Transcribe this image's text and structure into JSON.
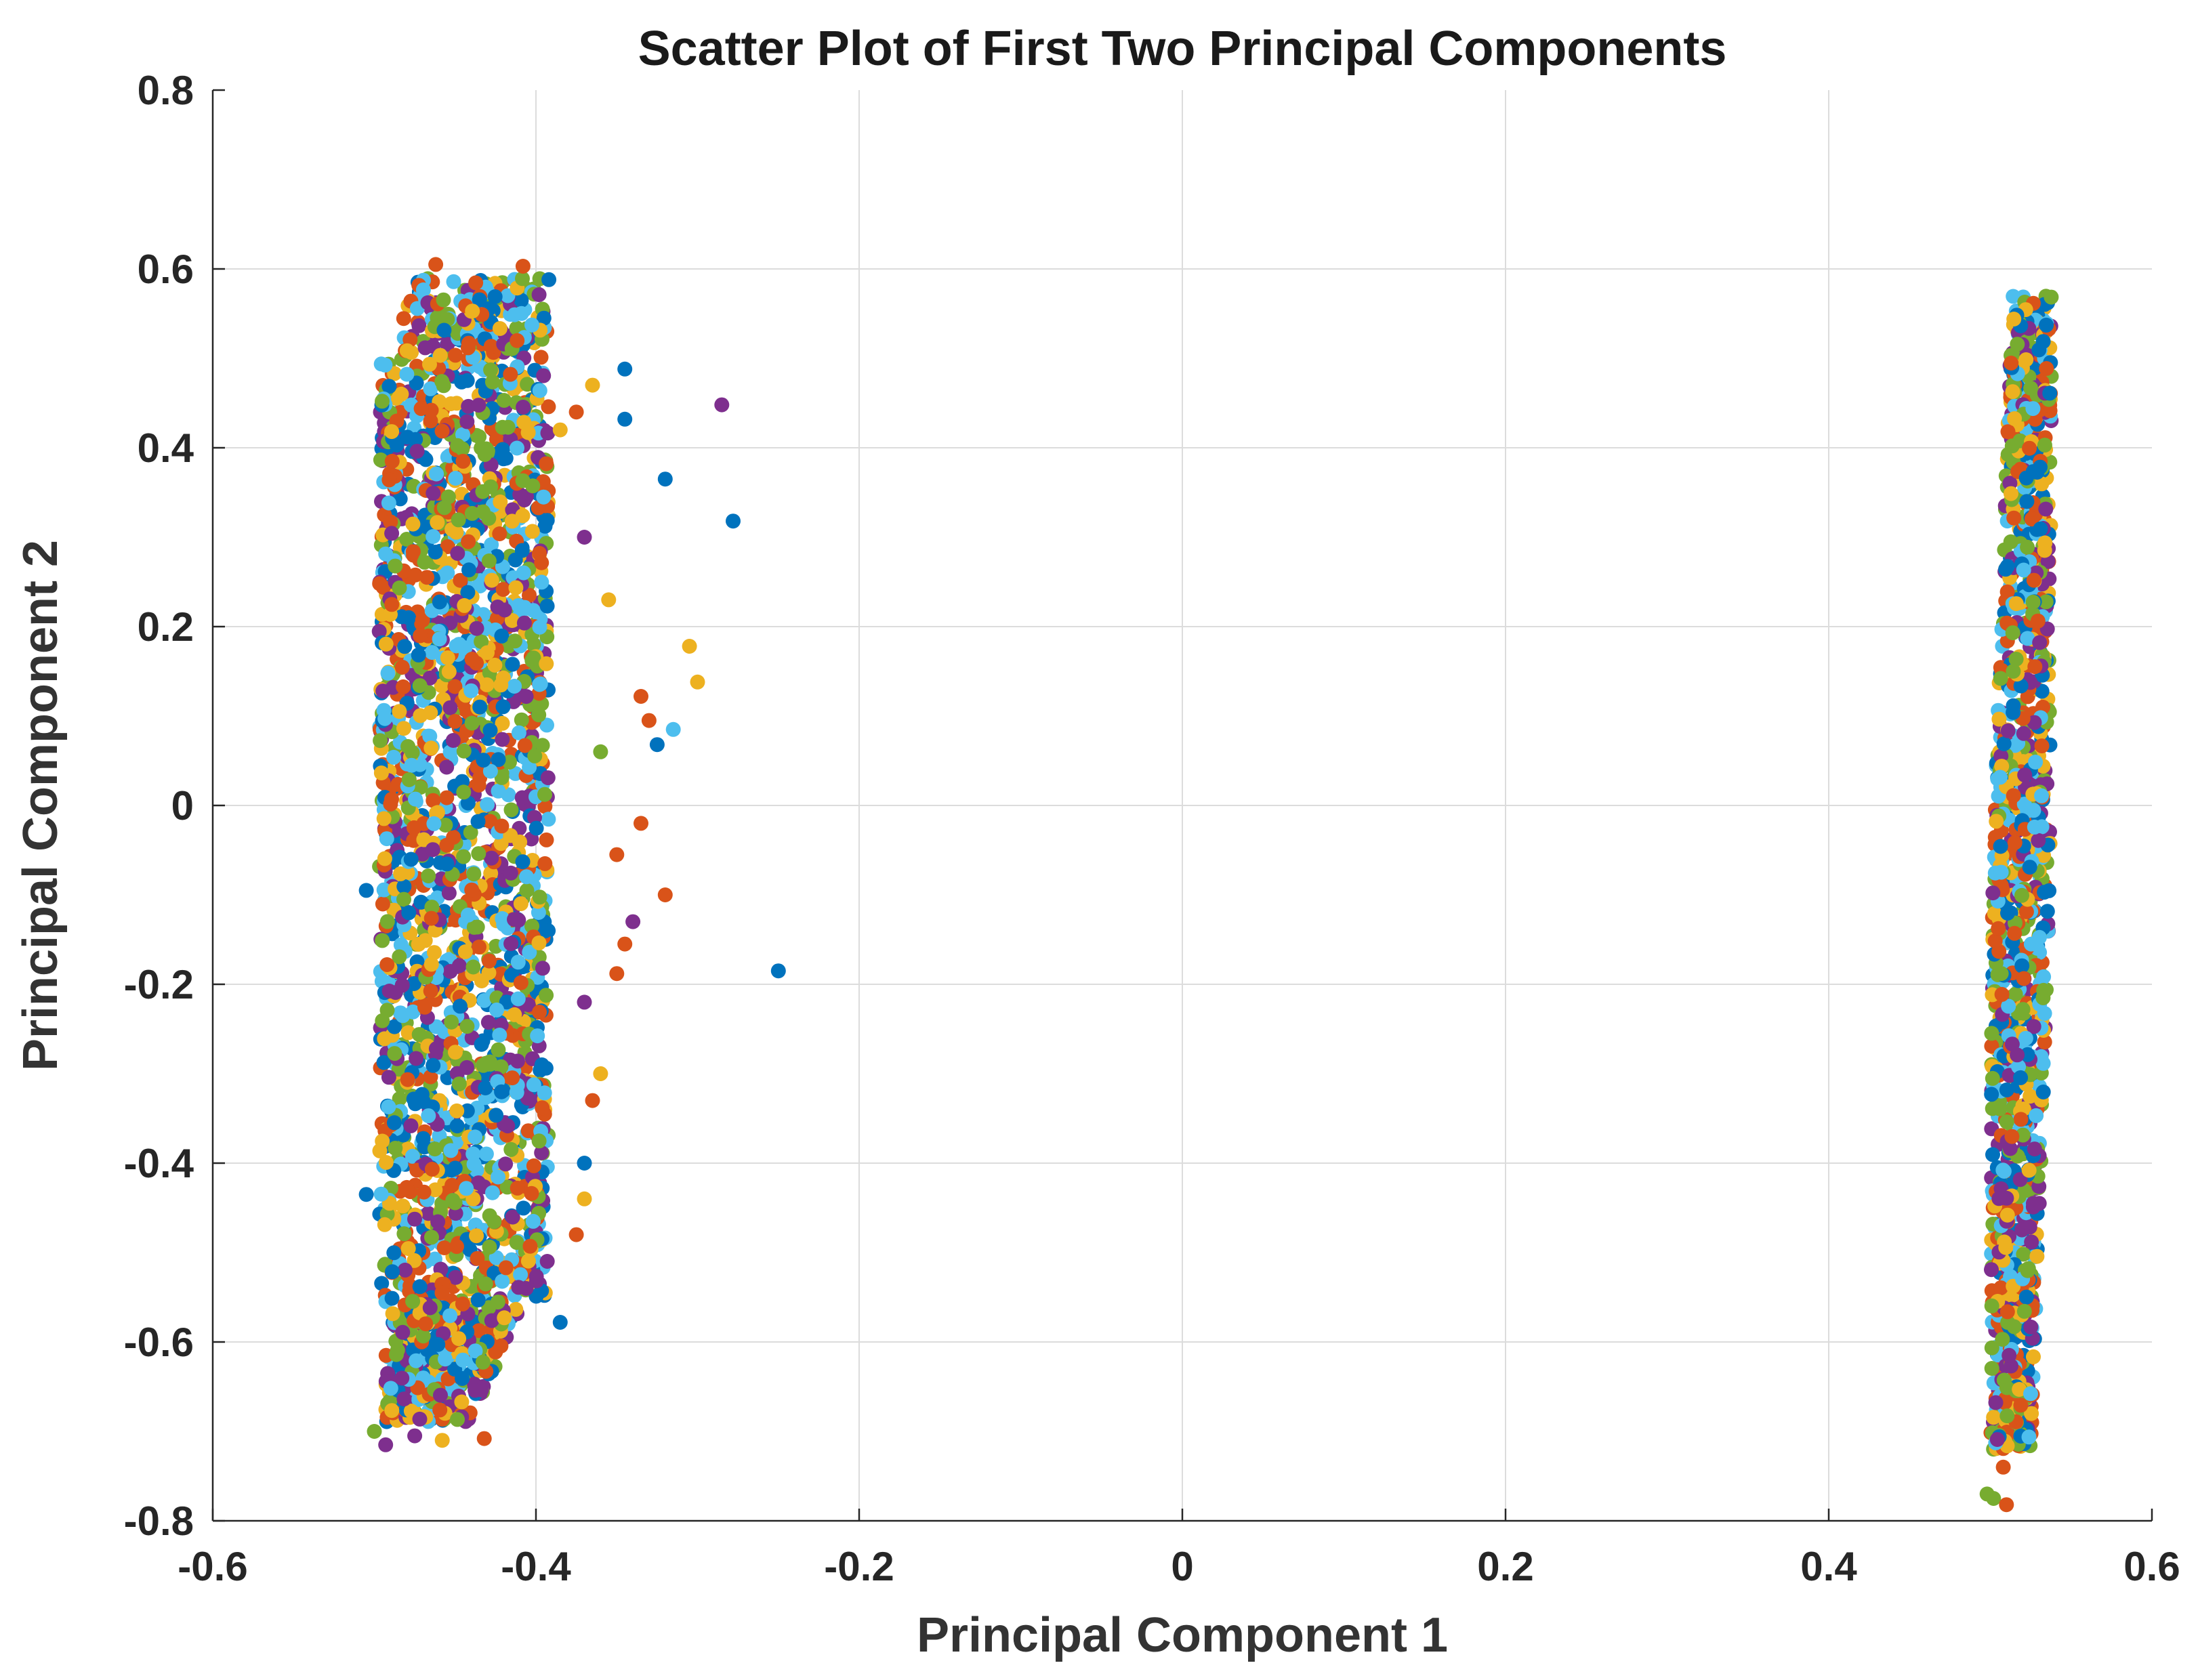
{
  "chart_data": {
    "type": "scatter",
    "title": "Scatter Plot of First Two Principal Components",
    "xlabel": "Principal Component 1",
    "ylabel": "Principal Component 2",
    "xlim": [
      -0.6,
      0.6
    ],
    "ylim": [
      -0.8,
      0.8
    ],
    "xticks": [
      -0.6,
      -0.4,
      -0.2,
      0,
      0.2,
      0.4,
      0.6
    ],
    "xtick_labels": [
      "-0.6",
      "-0.4",
      "-0.2",
      "0",
      "0.2",
      "0.4",
      "0.6"
    ],
    "yticks": [
      -0.8,
      -0.6,
      -0.4,
      -0.2,
      0,
      0.2,
      0.4,
      0.6,
      0.8
    ],
    "ytick_labels": [
      "-0.8",
      "-0.6",
      "-0.4",
      "-0.2",
      "0",
      "0.2",
      "0.4",
      "0.6",
      "0.8"
    ],
    "grid": true,
    "legend": "none",
    "series_colors": [
      "#0072BD",
      "#D95319",
      "#EDB120",
      "#7E2F8E",
      "#77AC30",
      "#4DBEEE"
    ],
    "clusters": [
      {
        "name": "",
        "x_range": [
          -0.5,
          -0.39
        ],
        "y_range": [
          -0.71,
          0.6
        ],
        "center": [
          -0.445,
          -0.05
        ]
      },
      {
        "name": "",
        "x_range": [
          0.495,
          0.535
        ],
        "y_range": [
          -0.78,
          0.58
        ],
        "center": [
          0.518,
          -0.1
        ]
      }
    ],
    "points": [
      {
        "x": -0.462,
        "y": 0.605,
        "c": 1
      },
      {
        "x": -0.408,
        "y": 0.603,
        "c": 1
      },
      {
        "x": -0.392,
        "y": 0.588,
        "c": 0
      },
      {
        "x": -0.345,
        "y": 0.488,
        "c": 0
      },
      {
        "x": -0.365,
        "y": 0.47,
        "c": 2
      },
      {
        "x": -0.285,
        "y": 0.448,
        "c": 3
      },
      {
        "x": -0.375,
        "y": 0.44,
        "c": 1
      },
      {
        "x": -0.345,
        "y": 0.432,
        "c": 0
      },
      {
        "x": -0.385,
        "y": 0.42,
        "c": 2
      },
      {
        "x": -0.32,
        "y": 0.365,
        "c": 0
      },
      {
        "x": -0.278,
        "y": 0.318,
        "c": 0
      },
      {
        "x": -0.37,
        "y": 0.3,
        "c": 3
      },
      {
        "x": -0.355,
        "y": 0.23,
        "c": 2
      },
      {
        "x": -0.305,
        "y": 0.178,
        "c": 2
      },
      {
        "x": -0.3,
        "y": 0.138,
        "c": 2
      },
      {
        "x": -0.335,
        "y": 0.122,
        "c": 1
      },
      {
        "x": -0.33,
        "y": 0.095,
        "c": 1
      },
      {
        "x": -0.315,
        "y": 0.085,
        "c": 5
      },
      {
        "x": -0.325,
        "y": 0.068,
        "c": 0
      },
      {
        "x": -0.36,
        "y": 0.06,
        "c": 4
      },
      {
        "x": -0.335,
        "y": -0.02,
        "c": 1
      },
      {
        "x": -0.35,
        "y": -0.055,
        "c": 1
      },
      {
        "x": -0.32,
        "y": -0.1,
        "c": 1
      },
      {
        "x": -0.34,
        "y": -0.13,
        "c": 3
      },
      {
        "x": -0.345,
        "y": -0.155,
        "c": 1
      },
      {
        "x": -0.25,
        "y": -0.185,
        "c": 0
      },
      {
        "x": -0.35,
        "y": -0.188,
        "c": 1
      },
      {
        "x": -0.37,
        "y": -0.22,
        "c": 3
      },
      {
        "x": -0.36,
        "y": -0.3,
        "c": 2
      },
      {
        "x": -0.365,
        "y": -0.33,
        "c": 1
      },
      {
        "x": -0.37,
        "y": -0.4,
        "c": 0
      },
      {
        "x": -0.37,
        "y": -0.44,
        "c": 2
      },
      {
        "x": -0.375,
        "y": -0.48,
        "c": 1
      },
      {
        "x": -0.385,
        "y": -0.578,
        "c": 0
      },
      {
        "x": -0.5,
        "y": -0.7,
        "c": 4
      },
      {
        "x": -0.493,
        "y": -0.715,
        "c": 3
      },
      {
        "x": -0.475,
        "y": -0.705,
        "c": 3
      },
      {
        "x": -0.458,
        "y": -0.71,
        "c": 2
      },
      {
        "x": -0.432,
        "y": -0.708,
        "c": 1
      },
      {
        "x": -0.505,
        "y": -0.095,
        "c": 0
      },
      {
        "x": -0.505,
        "y": -0.435,
        "c": 0
      },
      {
        "x": 0.498,
        "y": -0.77,
        "c": 4
      },
      {
        "x": 0.502,
        "y": -0.775,
        "c": 4
      },
      {
        "x": 0.51,
        "y": -0.782,
        "c": 1
      },
      {
        "x": 0.508,
        "y": -0.74,
        "c": 1
      }
    ]
  }
}
